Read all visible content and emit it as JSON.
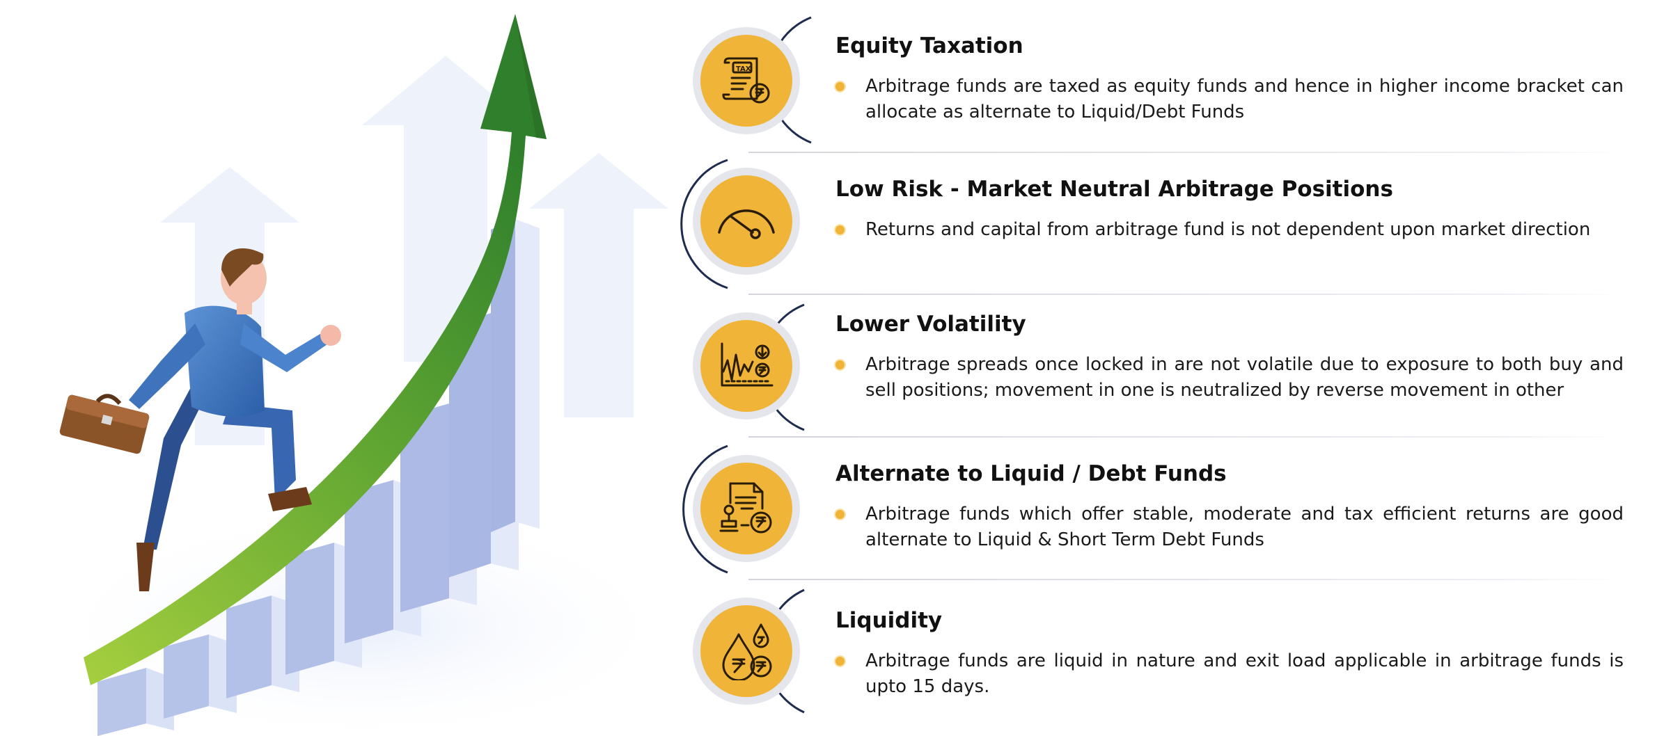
{
  "colors": {
    "icon_gold": "#f0b438",
    "icon_ring": "#e2e4ea",
    "arc_navy": "#1e2d4f",
    "arrow_green": "#4f9a2c",
    "bars_blue": "#c8d4ef"
  },
  "features": [
    {
      "title": "Equity Taxation",
      "text": "Arbitrage funds are taxed as equity funds and hence in higher income bracket can allocate as alternate to Liquid/Debt Funds",
      "icon": "tax-document-icon"
    },
    {
      "title": "Low Risk - Market Neutral Arbitrage Positions",
      "text": "Returns and capital from arbitrage fund is not dependent upon market direction",
      "icon": "risk-gauge-icon"
    },
    {
      "title": "Lower Volatility",
      "text": "Arbitrage spreads once locked in are not volatile due to exposure to both buy and sell positions; movement in one is neutralized by reverse movement in other",
      "icon": "volatility-chart-icon"
    },
    {
      "title": "Alternate to Liquid / Debt Funds",
      "text": "Arbitrage funds which offer stable, moderate and tax efficient returns are good alternate to Liquid & Short Term Debt Funds",
      "icon": "stamped-document-icon"
    },
    {
      "title": "Liquidity",
      "text": "Arbitrage funds are liquid in nature and exit load applicable in arbitrage funds is upto 15 days.",
      "icon": "rupee-drops-icon"
    }
  ],
  "illustration": {
    "icon": "businessman-climbing-growth-arrow-illustration"
  }
}
